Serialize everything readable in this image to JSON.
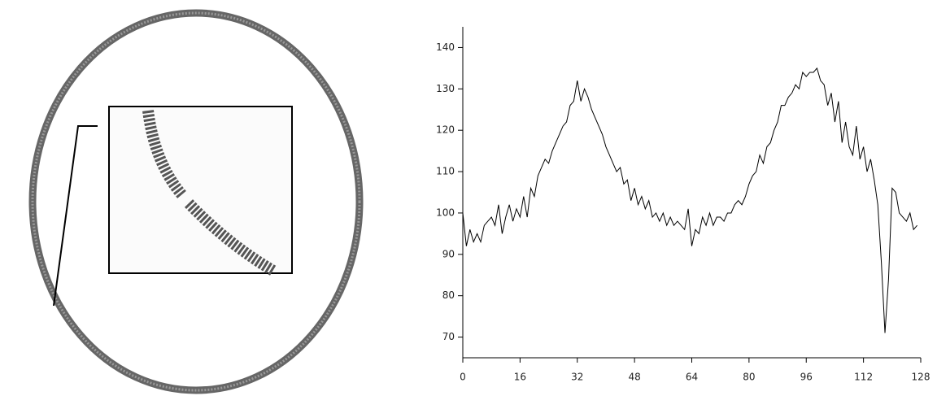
{
  "chart_data": {
    "type": "line",
    "color": "#000000",
    "x": [
      0,
      1,
      2,
      3,
      4,
      5,
      6,
      7,
      8,
      9,
      10,
      11,
      12,
      13,
      14,
      15,
      16,
      17,
      18,
      19,
      20,
      21,
      22,
      23,
      24,
      25,
      26,
      27,
      28,
      29,
      30,
      31,
      32,
      33,
      34,
      35,
      36,
      37,
      38,
      39,
      40,
      41,
      42,
      43,
      44,
      45,
      46,
      47,
      48,
      49,
      50,
      51,
      52,
      53,
      54,
      55,
      56,
      57,
      58,
      59,
      60,
      61,
      62,
      63,
      64,
      65,
      66,
      67,
      68,
      69,
      70,
      71,
      72,
      73,
      74,
      75,
      76,
      77,
      78,
      79,
      80,
      81,
      82,
      83,
      84,
      85,
      86,
      87,
      88,
      89,
      90,
      91,
      92,
      93,
      94,
      95,
      96,
      97,
      98,
      99,
      100,
      101,
      102,
      103,
      104,
      105,
      106,
      107,
      108,
      109,
      110,
      111,
      112,
      113,
      114,
      115,
      116,
      117,
      118,
      119,
      120,
      121,
      122,
      123,
      124,
      125,
      126,
      127
    ],
    "values": [
      100,
      92,
      96,
      93,
      95,
      93,
      97,
      98,
      99,
      97,
      102,
      95,
      99,
      102,
      98,
      101,
      99,
      104,
      99,
      106,
      104,
      109,
      111,
      113,
      112,
      115,
      117,
      119,
      121,
      122,
      126,
      127,
      132,
      127,
      130,
      128,
      125,
      123,
      121,
      119,
      116,
      114,
      112,
      110,
      111,
      107,
      108,
      103,
      106,
      102,
      104,
      101,
      103,
      99,
      100,
      98,
      100,
      97,
      99,
      97,
      98,
      97,
      96,
      101,
      92,
      96,
      95,
      99,
      97,
      100,
      97,
      99,
      99,
      98,
      100,
      100,
      102,
      103,
      102,
      104,
      107,
      109,
      110,
      114,
      112,
      116,
      117,
      120,
      122,
      126,
      126,
      128,
      129,
      131,
      130,
      134,
      133,
      134,
      134,
      135,
      132,
      131,
      126,
      129,
      122,
      127,
      117,
      122,
      116,
      114,
      121,
      113,
      116,
      110,
      113,
      108,
      102,
      88,
      71,
      84,
      106,
      105,
      100,
      99,
      98,
      100,
      96,
      97
    ],
    "xlim": [
      0,
      128
    ],
    "xticks": [
      0,
      16,
      32,
      48,
      64,
      80,
      96,
      112,
      128
    ],
    "ylim": [
      65,
      145
    ],
    "yticks": [
      70,
      80,
      90,
      100,
      110,
      120,
      130,
      140
    ]
  }
}
